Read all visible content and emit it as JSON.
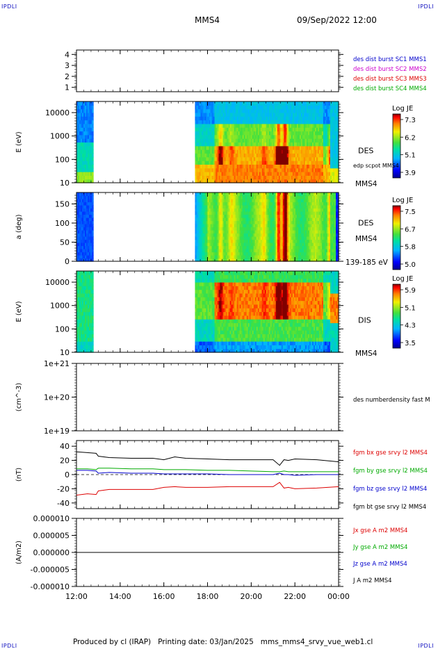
{
  "header": {
    "corner_left": "IPDLI",
    "corner_right": "IPDLI",
    "title": "MMS4",
    "datetime": "09/Sep/2022 12:00",
    "footer": "Produced by cl (IRAP)   Printing date: 03/Jan/2025   mms_mms4_srvy_vue_web1.cl",
    "corner_bottom_left": "IPDLI",
    "corner_bottom_right": "IPDLI"
  },
  "colors": {
    "blue": "#0000cc",
    "magenta": "#cc00cc",
    "red": "#dd0000",
    "green": "#00aa00",
    "black": "#000000"
  },
  "chart_data": [
    {
      "type": "line",
      "id": "sc-panel",
      "ylim": [
        0.6,
        4.4
      ],
      "yticks": [
        "1",
        "2",
        "3",
        "4"
      ],
      "legend": [
        {
          "text": "des dist burst SC1 MMS1",
          "color": "#0000cc"
        },
        {
          "text": "des dist burst SC2 MMS2",
          "color": "#cc00cc"
        },
        {
          "text": "des dist burst SC3 MMS3",
          "color": "#dd0000"
        },
        {
          "text": "des dist burst SC4 MMS4",
          "color": "#00aa00"
        }
      ]
    },
    {
      "type": "heatmap",
      "id": "des-energy",
      "ylabel": "E (eV)",
      "yscale": "log",
      "ylim": [
        10,
        30000
      ],
      "yticks": [
        "10",
        "100",
        "1000",
        "10000"
      ],
      "label": "DES",
      "sublabel": "edp scpot MMS4",
      "unit_label": "MMS4",
      "colorbar": {
        "title": "Log JE",
        "ticks": [
          "7.3",
          "6.2",
          "5.1",
          "3.9"
        ]
      }
    },
    {
      "type": "heatmap",
      "id": "des-pitch",
      "ylabel": "a (deg)",
      "ylim": [
        0,
        180
      ],
      "yticks": [
        "0",
        "50",
        "100",
        "150"
      ],
      "label": "DES",
      "sublabel": "MMS4",
      "unit_label": "139-185 eV",
      "colorbar": {
        "title": "Log JE",
        "ticks": [
          "7.5",
          "6.7",
          "5.8",
          "5.0"
        ]
      }
    },
    {
      "type": "heatmap",
      "id": "dis-energy",
      "ylabel": "E (eV)",
      "yscale": "log",
      "ylim": [
        10,
        30000
      ],
      "yticks": [
        "10",
        "100",
        "1000",
        "10000"
      ],
      "label": "DIS",
      "unit_label": "MMS4",
      "colorbar": {
        "title": "Log JE",
        "ticks": [
          "5.9",
          "5.1",
          "4.3",
          "3.5"
        ]
      }
    },
    {
      "type": "line",
      "id": "density",
      "ylabel": "(cm^-3)",
      "yscale": "log",
      "yticks": [
        "1e+21",
        "1e+20",
        "1e+19"
      ],
      "legend": [
        {
          "text": "des numberdensity fast M",
          "color": "#000000"
        }
      ]
    },
    {
      "type": "line",
      "id": "bfield",
      "ylabel": "(nT)",
      "ylim": [
        -48,
        48
      ],
      "yticks": [
        "40",
        "20",
        "0",
        "-20",
        "-40"
      ],
      "x": [
        12.0,
        12.5,
        12.9,
        13.0,
        13.5,
        14.5,
        15.5,
        16.0,
        16.5,
        17.0,
        18.0,
        19.0,
        20.0,
        21.0,
        21.3,
        21.5,
        21.7,
        22.0,
        23.0,
        24.0
      ],
      "series": [
        {
          "name": "fgm bx gse srvy l2 MMS4",
          "color": "#dd0000",
          "values": [
            -29,
            -27,
            -28,
            -23,
            -21,
            -21,
            -21,
            -18,
            -17,
            -18,
            -18,
            -17,
            -17,
            -17,
            -11,
            -19,
            -18,
            -20,
            -19,
            -17
          ]
        },
        {
          "name": "fgm by gse srvy l2 MMS4",
          "color": "#00aa00",
          "values": [
            8,
            8,
            7,
            9,
            9,
            8,
            8,
            7,
            7,
            7,
            6,
            6,
            5,
            4,
            4,
            5,
            4,
            4,
            4,
            4
          ]
        },
        {
          "name": "fgm bz gse srvy l2 MMS4",
          "color": "#0000cc",
          "values": [
            6,
            6,
            5,
            2,
            3,
            2,
            2,
            1,
            1,
            1,
            1,
            0,
            0,
            0,
            2,
            0,
            0,
            -1,
            0,
            0
          ]
        },
        {
          "name": "fgm bt gse srvy l2 MMS4",
          "color": "#000000",
          "values": [
            32,
            31,
            30,
            26,
            24,
            23,
            23,
            21,
            25,
            23,
            22,
            21,
            21,
            21,
            13,
            21,
            20,
            22,
            21,
            18
          ]
        }
      ]
    },
    {
      "type": "line",
      "id": "current",
      "ylabel": "(A/m2)",
      "ylim": [
        -1e-05,
        1e-05
      ],
      "yticks": [
        "0.000010",
        "0.000005",
        "0.000000",
        "-0.000005",
        "-0.000010"
      ],
      "x": [
        12.0,
        24.0
      ],
      "series": [
        {
          "name": "Jx gse A m2 MMS4",
          "color": "#dd0000",
          "values": [
            0,
            0
          ]
        },
        {
          "name": "Jy gse A m2 MMS4",
          "color": "#00aa00",
          "values": [
            0,
            0
          ]
        },
        {
          "name": "Jz gse A m2 MMS4",
          "color": "#0000cc",
          "values": [
            0,
            0
          ]
        },
        {
          "name": "J A m2 MMS4",
          "color": "#000000",
          "values": [
            0,
            0
          ]
        }
      ]
    }
  ],
  "xaxis": {
    "ticks": [
      "12:00",
      "14:00",
      "16:00",
      "18:00",
      "20:00",
      "22:00",
      "00:00"
    ],
    "range_hours": [
      12,
      24
    ]
  }
}
